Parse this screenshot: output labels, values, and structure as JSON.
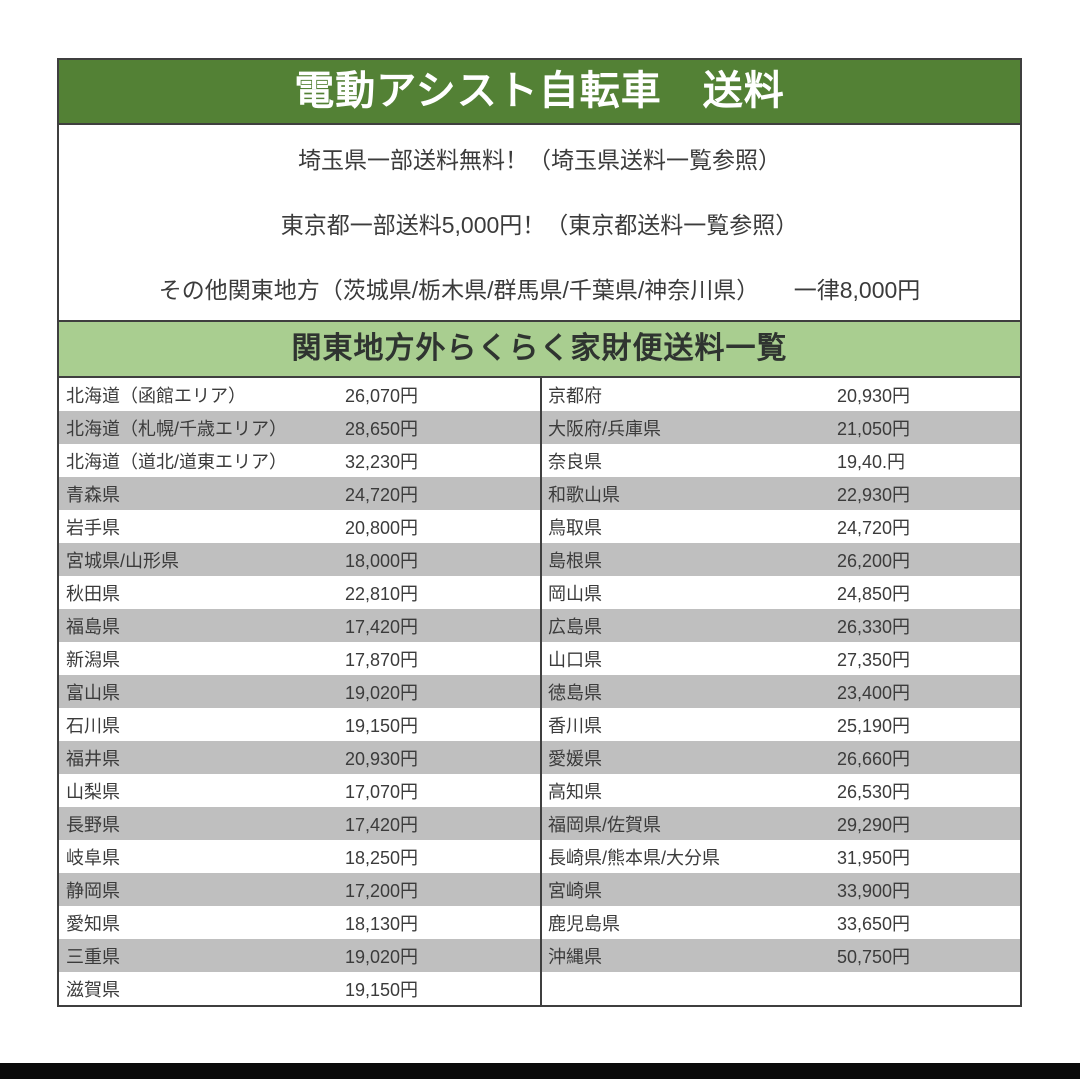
{
  "document": {
    "main_header": "電動アシスト自転車　送料",
    "notes": [
      "埼玉県一部送料無料！（埼玉県送料一覧参照）",
      "東京都一部送料5,000円！（東京都送料一覧参照）",
      "その他関東地方（茨城県/栃木県/群馬県/千葉県/神奈川県）　　一律8,000円"
    ],
    "table_header": "関東地方外らくらく家財便送料一覧"
  },
  "colors": {
    "header_bg": "#538135",
    "header_text": "#ffffff",
    "subheader_bg": "#a9ce90",
    "subheader_text": "#2f3430",
    "stripe": "#bfbfbf",
    "row_text": "#3b3b3b",
    "border": "#3f3f3f",
    "bottom_bar": "#0a0a0a"
  },
  "fee_table": {
    "rows": [
      {
        "left_region": "北海道（函館エリア）",
        "left_fee": "26,070円",
        "right_region": "京都府",
        "right_fee": "20,930円"
      },
      {
        "left_region": "北海道（札幌/千歳エリア）",
        "left_fee": "28,650円",
        "right_region": "大阪府/兵庫県",
        "right_fee": "21,050円"
      },
      {
        "left_region": "北海道（道北/道東エリア）",
        "left_fee": "32,230円",
        "right_region": "奈良県",
        "right_fee": "19,40.円"
      },
      {
        "left_region": "青森県",
        "left_fee": "24,720円",
        "right_region": "和歌山県",
        "right_fee": "22,930円"
      },
      {
        "left_region": "岩手県",
        "left_fee": "20,800円",
        "right_region": "鳥取県",
        "right_fee": "24,720円"
      },
      {
        "left_region": "宮城県/山形県",
        "left_fee": "18,000円",
        "right_region": "島根県",
        "right_fee": "26,200円"
      },
      {
        "left_region": "秋田県",
        "left_fee": "22,810円",
        "right_region": "岡山県",
        "right_fee": "24,850円"
      },
      {
        "left_region": "福島県",
        "left_fee": "17,420円",
        "right_region": "広島県",
        "right_fee": "26,330円"
      },
      {
        "left_region": "新潟県",
        "left_fee": "17,870円",
        "right_region": "山口県",
        "right_fee": "27,350円"
      },
      {
        "left_region": "富山県",
        "left_fee": "19,020円",
        "right_region": "徳島県",
        "right_fee": "23,400円"
      },
      {
        "left_region": "石川県",
        "left_fee": "19,150円",
        "right_region": "香川県",
        "right_fee": "25,190円"
      },
      {
        "left_region": "福井県",
        "left_fee": "20,930円",
        "right_region": "愛媛県",
        "right_fee": "26,660円"
      },
      {
        "left_region": "山梨県",
        "left_fee": "17,070円",
        "right_region": "高知県",
        "right_fee": "26,530円"
      },
      {
        "left_region": "長野県",
        "left_fee": "17,420円",
        "right_region": "福岡県/佐賀県",
        "right_fee": "29,290円"
      },
      {
        "left_region": "岐阜県",
        "left_fee": "18,250円",
        "right_region": "長崎県/熊本県/大分県",
        "right_fee": "31,950円"
      },
      {
        "left_region": "静岡県",
        "left_fee": "17,200円",
        "right_region": "宮崎県",
        "right_fee": "33,900円"
      },
      {
        "left_region": "愛知県",
        "left_fee": "18,130円",
        "right_region": "鹿児島県",
        "right_fee": "33,650円"
      },
      {
        "left_region": "三重県",
        "left_fee": "19,020円",
        "right_region": "沖縄県",
        "right_fee": "50,750円"
      },
      {
        "left_region": "滋賀県",
        "left_fee": "19,150円",
        "right_region": "",
        "right_fee": ""
      }
    ]
  }
}
